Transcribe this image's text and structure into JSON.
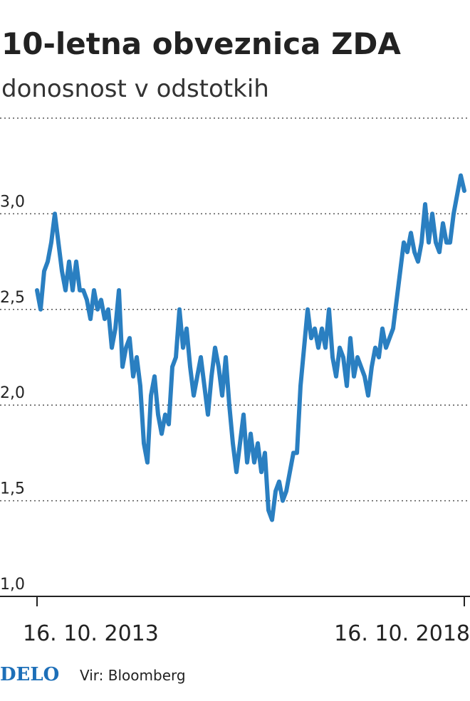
{
  "chart_data": {
    "type": "line",
    "title": "10-letna obveznica ZDA",
    "subtitle": "donosnost v odstotkih",
    "source": "Vir: Bloomberg",
    "logo": "DELO",
    "color": "#2a7fc1",
    "grid": true,
    "ylim": [
      1.0,
      3.5
    ],
    "yticks": [
      {
        "value": 1.0,
        "label": "1,0"
      },
      {
        "value": 1.5,
        "label": "1,5"
      },
      {
        "value": 2.0,
        "label": "2,0"
      },
      {
        "value": 2.5,
        "label": "2,5"
      },
      {
        "value": 3.0,
        "label": "3,0"
      }
    ],
    "categories": [
      "16. 10. 2013",
      null,
      null,
      null,
      null,
      null,
      null,
      null,
      null,
      null,
      null,
      null,
      null,
      null,
      null,
      null,
      null,
      null,
      null,
      null,
      null,
      null,
      null,
      null,
      null,
      null,
      null,
      null,
      null,
      null,
      null,
      null,
      null,
      null,
      null,
      null,
      null,
      null,
      null,
      null,
      null,
      null,
      null,
      null,
      null,
      null,
      null,
      null,
      null,
      null,
      null,
      null,
      null,
      null,
      null,
      null,
      null,
      null,
      null,
      null,
      null,
      null,
      null,
      null,
      null,
      null,
      null,
      null,
      null,
      null,
      null,
      null,
      null,
      null,
      null,
      null,
      null,
      null,
      null,
      null,
      null,
      null,
      null,
      null,
      null,
      null,
      null,
      null,
      null,
      null,
      null,
      null,
      null,
      null,
      null,
      null,
      null,
      null,
      null,
      null,
      null,
      null,
      null,
      null,
      null,
      null,
      null,
      null,
      null,
      null,
      null,
      null,
      null,
      null,
      null,
      null,
      null,
      null,
      null,
      null,
      "16. 10. 2018"
    ],
    "values": [
      2.6,
      2.5,
      2.7,
      2.75,
      2.85,
      3.0,
      2.85,
      2.7,
      2.6,
      2.75,
      2.6,
      2.75,
      2.6,
      2.6,
      2.55,
      2.45,
      2.6,
      2.5,
      2.55,
      2.45,
      2.5,
      2.3,
      2.4,
      2.6,
      2.2,
      2.3,
      2.35,
      2.15,
      2.25,
      2.1,
      1.8,
      1.7,
      2.05,
      2.15,
      1.95,
      1.85,
      1.95,
      1.9,
      2.2,
      2.25,
      2.5,
      2.3,
      2.4,
      2.2,
      2.05,
      2.15,
      2.25,
      2.1,
      1.95,
      2.15,
      2.3,
      2.2,
      2.05,
      2.25,
      2.0,
      1.8,
      1.65,
      1.8,
      1.95,
      1.7,
      1.85,
      1.7,
      1.8,
      1.65,
      1.75,
      1.45,
      1.4,
      1.55,
      1.6,
      1.5,
      1.55,
      1.65,
      1.75,
      1.75,
      2.1,
      2.3,
      2.5,
      2.35,
      2.4,
      2.3,
      2.4,
      2.3,
      2.5,
      2.25,
      2.15,
      2.3,
      2.25,
      2.1,
      2.35,
      2.15,
      2.25,
      2.2,
      2.15,
      2.05,
      2.2,
      2.3,
      2.25,
      2.4,
      2.3,
      2.35,
      2.4,
      2.55,
      2.7,
      2.85,
      2.8,
      2.9,
      2.8,
      2.75,
      2.85,
      3.05,
      2.85,
      3.0,
      2.85,
      2.8,
      2.95,
      2.85,
      2.85,
      3.0,
      3.1,
      3.2,
      3.12
    ]
  }
}
